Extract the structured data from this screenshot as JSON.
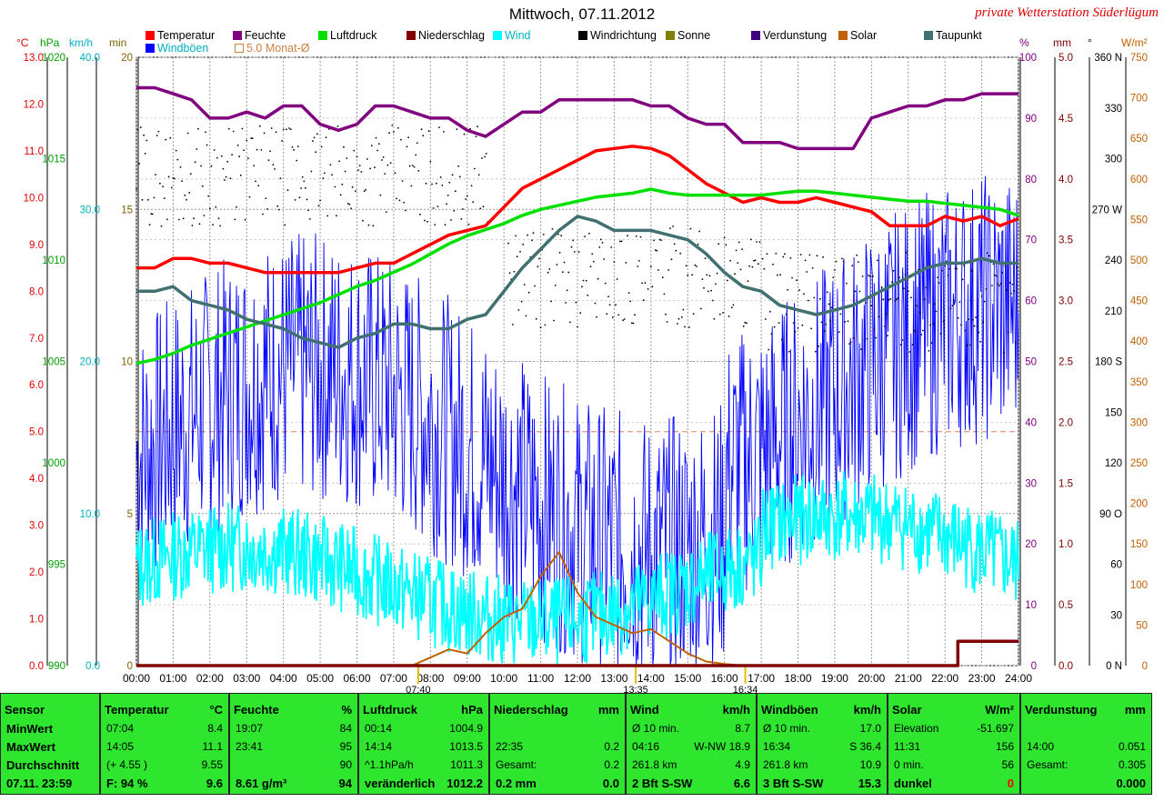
{
  "title": "Mittwoch, 07.11.2012",
  "station": "private Wetterstation Süderlügum",
  "legend": [
    {
      "label": "Temperatur",
      "color": "#ff0000"
    },
    {
      "label": "Feuchte",
      "color": "#800080"
    },
    {
      "label": "Luftdruck",
      "color": "#00e000"
    },
    {
      "label": "Niederschlag",
      "color": "#800000"
    },
    {
      "label": "Wind",
      "color": "#00ffff"
    },
    {
      "label": "Windrichtung",
      "color": "#000000"
    },
    {
      "label": "Sonne",
      "color": "#808000"
    },
    {
      "label": "Verdunstung",
      "color": "#400080"
    },
    {
      "label": "Solar",
      "color": "#c06000"
    },
    {
      "label": "Taupunkt",
      "color": "#407070"
    },
    {
      "label": "Windböen",
      "color": "#0000ff"
    },
    {
      "label": "5.0 Monat-Ø",
      "color": "#d08040"
    }
  ],
  "axis_units": {
    "temp": "°C",
    "press": "hPa",
    "wind": "km/h",
    "sun": "min",
    "hum": "%",
    "rain": "mm",
    "dir": "°",
    "solar": "W/m²"
  },
  "chart_data": {
    "type": "line",
    "x_ticks": [
      "00:00",
      "01:00",
      "02:00",
      "03:00",
      "04:00",
      "05:00",
      "06:00",
      "07:00",
      "08:00",
      "09:00",
      "10:00",
      "11:00",
      "12:00",
      "13:00",
      "14:00",
      "15:00",
      "16:00",
      "17:00",
      "18:00",
      "19:00",
      "20:00",
      "21:00",
      "22:00",
      "23:00",
      "24:00"
    ],
    "x_markers": [
      "07:40",
      "13:35",
      "16:34"
    ],
    "axes": {
      "temp": {
        "min": 0,
        "max": 13,
        "ticks": [
          "0.0",
          "1.0",
          "2.0",
          "3.0",
          "4.0",
          "5.0",
          "6.0",
          "7.0",
          "8.0",
          "9.0",
          "10.0",
          "11.0",
          "12.0",
          "13.0"
        ]
      },
      "press": {
        "min": 990,
        "max": 1020,
        "ticks": [
          "990",
          "995",
          "1000",
          "1005",
          "1010",
          "1015",
          "1020"
        ]
      },
      "wind": {
        "min": 0,
        "max": 40,
        "ticks": [
          "0.0",
          "10.0",
          "20.0",
          "30.0",
          "40.0"
        ]
      },
      "sun": {
        "min": 0,
        "max": 20,
        "ticks": [
          "0",
          "5",
          "10",
          "15",
          "20"
        ]
      },
      "hum": {
        "min": 0,
        "max": 100,
        "ticks": [
          "0",
          "10",
          "20",
          "30",
          "40",
          "50",
          "60",
          "70",
          "80",
          "90",
          "100"
        ]
      },
      "rain": {
        "min": 0,
        "max": 5,
        "ticks": [
          "0.0",
          "0.5",
          "1.0",
          "1.5",
          "2.0",
          "2.5",
          "3.0",
          "3.5",
          "4.0",
          "4.5",
          "5.0"
        ]
      },
      "dir": {
        "min": 0,
        "max": 360,
        "ticks": [
          "0 N",
          "30",
          "60",
          "90 O",
          "120",
          "150",
          "180 S",
          "210",
          "240",
          "270 W",
          "300",
          "330",
          "360 N"
        ]
      },
      "solar": {
        "min": 0,
        "max": 750,
        "ticks": [
          "0",
          "50",
          "100",
          "150",
          "200",
          "250",
          "300",
          "350",
          "400",
          "450",
          "500",
          "550",
          "600",
          "650",
          "700",
          "750"
        ]
      }
    },
    "series": [
      {
        "name": "Temperatur",
        "axis": "temp",
        "color": "#ff0000",
        "x": [
          0,
          0.5,
          1,
          1.5,
          2,
          2.5,
          3,
          3.5,
          4,
          4.5,
          5,
          5.5,
          6,
          6.5,
          7,
          7.5,
          8,
          8.5,
          9,
          9.5,
          10,
          10.5,
          11,
          11.5,
          12,
          12.5,
          13,
          13.5,
          14,
          14.5,
          15,
          15.5,
          16,
          16.5,
          17,
          17.5,
          18,
          18.5,
          19,
          19.5,
          20,
          20.5,
          21,
          21.5,
          22,
          22.5,
          23,
          23.5,
          24
        ],
        "values": [
          8.5,
          8.5,
          8.7,
          8.7,
          8.6,
          8.6,
          8.5,
          8.4,
          8.4,
          8.4,
          8.4,
          8.4,
          8.5,
          8.6,
          8.6,
          8.8,
          9.0,
          9.2,
          9.3,
          9.4,
          9.8,
          10.2,
          10.4,
          10.6,
          10.8,
          11.0,
          11.05,
          11.1,
          11.05,
          10.9,
          10.6,
          10.3,
          10.1,
          9.9,
          10.0,
          9.9,
          9.9,
          10.0,
          9.9,
          9.8,
          9.7,
          9.4,
          9.4,
          9.4,
          9.6,
          9.5,
          9.6,
          9.4,
          9.55
        ]
      },
      {
        "name": "Luftdruck",
        "axis": "press",
        "color": "#00e000",
        "x": [
          0,
          0.5,
          1,
          1.5,
          2,
          2.5,
          3,
          3.5,
          4,
          4.5,
          5,
          5.5,
          6,
          6.5,
          7,
          7.5,
          8,
          8.5,
          9,
          9.5,
          10,
          10.5,
          11,
          11.5,
          12,
          12.5,
          13,
          13.5,
          14,
          14.5,
          15,
          15.5,
          16,
          16.5,
          17,
          17.5,
          18,
          18.5,
          19,
          19.5,
          20,
          20.5,
          21,
          21.5,
          22,
          22.5,
          23,
          23.5,
          24
        ],
        "values": [
          1004.9,
          1005.1,
          1005.4,
          1005.8,
          1006.1,
          1006.4,
          1006.7,
          1007.0,
          1007.3,
          1007.6,
          1007.9,
          1008.3,
          1008.7,
          1009.0,
          1009.4,
          1009.8,
          1010.3,
          1010.8,
          1011.2,
          1011.5,
          1011.8,
          1012.2,
          1012.5,
          1012.7,
          1012.9,
          1013.1,
          1013.2,
          1013.3,
          1013.5,
          1013.3,
          1013.2,
          1013.2,
          1013.2,
          1013.2,
          1013.2,
          1013.3,
          1013.4,
          1013.4,
          1013.3,
          1013.2,
          1013.1,
          1013.0,
          1012.9,
          1012.9,
          1012.8,
          1012.7,
          1012.6,
          1012.5,
          1012.2
        ]
      },
      {
        "name": "Feuchte",
        "axis": "hum",
        "color": "#800080",
        "x": [
          0,
          0.5,
          1,
          1.5,
          2,
          2.5,
          3,
          3.5,
          4,
          4.5,
          5,
          5.5,
          6,
          6.5,
          7,
          7.5,
          8,
          8.5,
          9,
          9.5,
          10,
          10.5,
          11,
          11.5,
          12,
          12.5,
          13,
          13.5,
          14,
          14.5,
          15,
          15.5,
          16,
          16.5,
          17,
          17.5,
          18,
          18.5,
          19,
          19.5,
          20,
          20.5,
          21,
          21.5,
          22,
          22.5,
          23,
          23.5,
          24
        ],
        "values": [
          95,
          95,
          94,
          93,
          90,
          90,
          91,
          90,
          92,
          92,
          89,
          88,
          89,
          92,
          92,
          91,
          90,
          90,
          88,
          87,
          89,
          91,
          91,
          93,
          93,
          93,
          93,
          93,
          92,
          92,
          90,
          89,
          89,
          86,
          86,
          86,
          85,
          85,
          85,
          85,
          90,
          91,
          92,
          92,
          93,
          93,
          94,
          94,
          94
        ]
      },
      {
        "name": "Taupunkt",
        "axis": "temp",
        "color": "#407070",
        "x": [
          0,
          0.5,
          1,
          1.5,
          2,
          2.5,
          3,
          3.5,
          4,
          4.5,
          5,
          5.5,
          6,
          6.5,
          7,
          7.5,
          8,
          8.5,
          9,
          9.5,
          10,
          10.5,
          11,
          11.5,
          12,
          12.5,
          13,
          13.5,
          14,
          14.5,
          15,
          15.5,
          16,
          16.5,
          17,
          17.5,
          18,
          18.5,
          19,
          19.5,
          20,
          20.5,
          21,
          21.5,
          22,
          22.5,
          23,
          23.5,
          24
        ],
        "values": [
          8.0,
          8.0,
          8.1,
          7.8,
          7.7,
          7.6,
          7.4,
          7.3,
          7.2,
          7.0,
          6.9,
          6.8,
          7.0,
          7.1,
          7.3,
          7.3,
          7.2,
          7.2,
          7.4,
          7.5,
          8.0,
          8.5,
          8.9,
          9.3,
          9.6,
          9.5,
          9.3,
          9.3,
          9.3,
          9.2,
          9.1,
          8.8,
          8.4,
          8.1,
          8.0,
          7.7,
          7.6,
          7.5,
          7.6,
          7.7,
          7.9,
          8.1,
          8.3,
          8.5,
          8.6,
          8.6,
          8.7,
          8.6,
          8.6
        ]
      },
      {
        "name": "Solar",
        "axis": "solar",
        "color": "#c06000",
        "x": [
          7.5,
          8,
          8.5,
          9,
          9.5,
          10,
          10.5,
          11,
          11.5,
          12,
          12.5,
          13,
          13.5,
          14,
          14.5,
          15,
          15.5,
          16,
          16.5
        ],
        "values": [
          0,
          10,
          20,
          15,
          40,
          60,
          70,
          110,
          140,
          90,
          60,
          50,
          40,
          45,
          30,
          15,
          5,
          2,
          0
        ]
      },
      {
        "name": "Niederschlag",
        "axis": "rain",
        "color": "#800000",
        "x": [
          0,
          22.3,
          22.35,
          24
        ],
        "values": [
          0,
          0,
          0.2,
          0.2
        ]
      }
    ],
    "stats": {
      "min_wert": "MinWert",
      "max_wert": "MaxWert",
      "durchschnitt": "Durchschnitt"
    }
  },
  "stats_panel": {
    "sensor": {
      "header": "Sensor",
      "rows": [
        "MinWert",
        "MaxWert",
        "Durchschnitt",
        "07.11. 23:59"
      ]
    },
    "temperatur": {
      "header": "Temperatur",
      "unit": "°C",
      "rows": [
        [
          "07:04",
          "8.4"
        ],
        [
          "14:05",
          "11.1"
        ],
        [
          "(+ 4.55 )",
          "9.55"
        ],
        [
          "F: 94 %",
          "9.6"
        ]
      ]
    },
    "feuchte": {
      "header": "Feuchte",
      "unit": "%",
      "rows": [
        [
          "19:07",
          "84"
        ],
        [
          "23:41",
          "95"
        ],
        [
          "",
          "90"
        ],
        [
          "8.61 g/m³",
          "94"
        ]
      ]
    },
    "luftdruck": {
      "header": "Luftdruck",
      "unit": "hPa",
      "rows": [
        [
          "00:14",
          "1004.9"
        ],
        [
          "14:14",
          "1013.5"
        ],
        [
          "^1.1hPa/h",
          "1011.3"
        ],
        [
          "veränderlich",
          "1012.2"
        ]
      ]
    },
    "niederschlag": {
      "header": "Niederschlag",
      "unit": "mm",
      "rows": [
        [
          "",
          ""
        ],
        [
          "22:35",
          "0.2"
        ],
        [
          "Gesamt:",
          "0.2"
        ],
        [
          "0.2 mm",
          "0.0"
        ]
      ]
    },
    "wind": {
      "header": "Wind",
      "unit": "km/h",
      "rows": [
        [
          "Ø 10 min.",
          "8.7"
        ],
        [
          "04:16",
          "W-NW 18.9"
        ],
        [
          "261.8 km",
          "4.9"
        ],
        [
          "2 Bft S-SW",
          "6.6"
        ]
      ]
    },
    "windboeen": {
      "header": "Windböen",
      "unit": "km/h",
      "rows": [
        [
          "Ø 10 min.",
          "17.0"
        ],
        [
          "16:34",
          "S 36.4"
        ],
        [
          "261.8 km",
          "10.9"
        ],
        [
          "3 Bft S-SW",
          "15.3"
        ]
      ]
    },
    "solar": {
      "header": "Solar",
      "unit": "W/m²",
      "rows": [
        [
          "Elevation",
          "-51.697"
        ],
        [
          "11:31",
          "156"
        ],
        [
          "0 min.",
          "56"
        ],
        [
          "dunkel",
          "0"
        ]
      ]
    },
    "verdunstung": {
      "header": "Verdunstung",
      "unit": "mm",
      "rows": [
        [
          "",
          ""
        ],
        [
          "14:00",
          "0.051"
        ],
        [
          "Gesamt:",
          "0.305"
        ],
        [
          "",
          "0.000"
        ]
      ]
    }
  }
}
